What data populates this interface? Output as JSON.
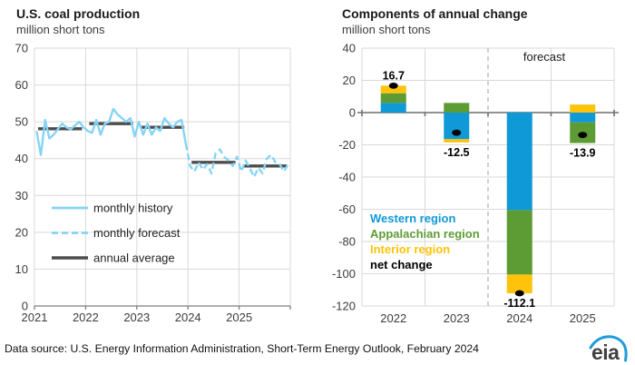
{
  "page": {
    "source_note": "Data source: U.S. Energy Information Administration, Short-Term Energy Outlook, February 2024",
    "logo_text": "eia"
  },
  "colors": {
    "history_line": "#85d4f5",
    "forecast_line": "#85d4f5",
    "annual_average": "#4d4d4d",
    "western": "#0f99d6",
    "appalachian": "#5d9c34",
    "interior": "#ffc30b",
    "net_change": "#000000",
    "grid": "#d9d9d9",
    "axis": "#7f7f7f",
    "zero_line": "#6e6e6e",
    "forecast_divider": "#b0b0b0",
    "tick_label": "#3d3d3d",
    "logo_blue": "#1f9bd8"
  },
  "chart_data": [
    {
      "type": "line",
      "title": "U.S. coal production",
      "subtitle": "million short tons",
      "ylim": [
        0,
        70
      ],
      "ytick_step": 10,
      "yticks": [
        0,
        10,
        20,
        30,
        40,
        50,
        60,
        70
      ],
      "x_years": [
        "2021",
        "2022",
        "2023",
        "2024",
        "2025"
      ],
      "grid": true,
      "legend_position": "inside-lower-left",
      "legend": [
        "monthly history",
        "monthly forecast",
        "annual average"
      ],
      "series": [
        {
          "name": "monthly history",
          "start": "2021-01",
          "values": [
            47.5,
            41.0,
            50.5,
            45.5,
            46.5,
            48.0,
            49.5,
            48.5,
            48.0,
            49.0,
            50.0,
            48.5,
            47.5,
            47.0,
            50.5,
            46.5,
            49.5,
            50.0,
            53.5,
            52.0,
            51.0,
            50.0,
            51.0,
            46.0,
            50.0,
            46.5,
            49.5,
            46.5,
            48.5,
            47.5,
            51.0,
            49.5,
            48.5,
            50.0,
            50.5,
            44.0
          ]
        },
        {
          "name": "monthly forecast",
          "start": "2024-01",
          "values": [
            38.0,
            36.5,
            39.0,
            37.0,
            38.5,
            36.0,
            41.5,
            42.5,
            40.5,
            39.5,
            38.0,
            40.5,
            36.5,
            39.5,
            37.5,
            35.0,
            37.5,
            36.0,
            40.0,
            41.0,
            39.0,
            38.5,
            36.5,
            38.5
          ]
        },
        {
          "name": "annual average",
          "values": [
            48.1,
            49.5,
            48.5,
            39.0,
            38.0
          ]
        }
      ]
    },
    {
      "type": "bar",
      "title": "Components of annual change",
      "subtitle": "million short tons",
      "ylim": [
        -120,
        40
      ],
      "ytick_step": 20,
      "yticks": [
        40,
        20,
        0,
        -20,
        -40,
        -60,
        -80,
        -100,
        -120
      ],
      "categories": [
        "2022",
        "2023",
        "2024",
        "2025"
      ],
      "grid": true,
      "stacked": true,
      "forecast_label": "forecast",
      "forecast_divider_after_category": "2023",
      "legend_position": "inside-lower-left",
      "legend": [
        "Western region",
        "Appalachian region",
        "Interior region",
        "net change"
      ],
      "series": [
        {
          "name": "Western region",
          "color_key": "western",
          "values": [
            6.0,
            -16.5,
            -60.5,
            -6.0
          ]
        },
        {
          "name": "Appalachian region",
          "color_key": "appalachian",
          "values": [
            6.0,
            6.0,
            -40.0,
            -12.9
          ]
        },
        {
          "name": "Interior region",
          "color_key": "interior",
          "values": [
            4.7,
            -2.0,
            -11.6,
            5.0
          ]
        }
      ],
      "net_change": {
        "name": "net change",
        "values": [
          16.7,
          -12.5,
          -112.1,
          -13.9
        ],
        "labels": [
          "16.7",
          "-12.5",
          "-112.1",
          "-13.9"
        ]
      }
    }
  ]
}
